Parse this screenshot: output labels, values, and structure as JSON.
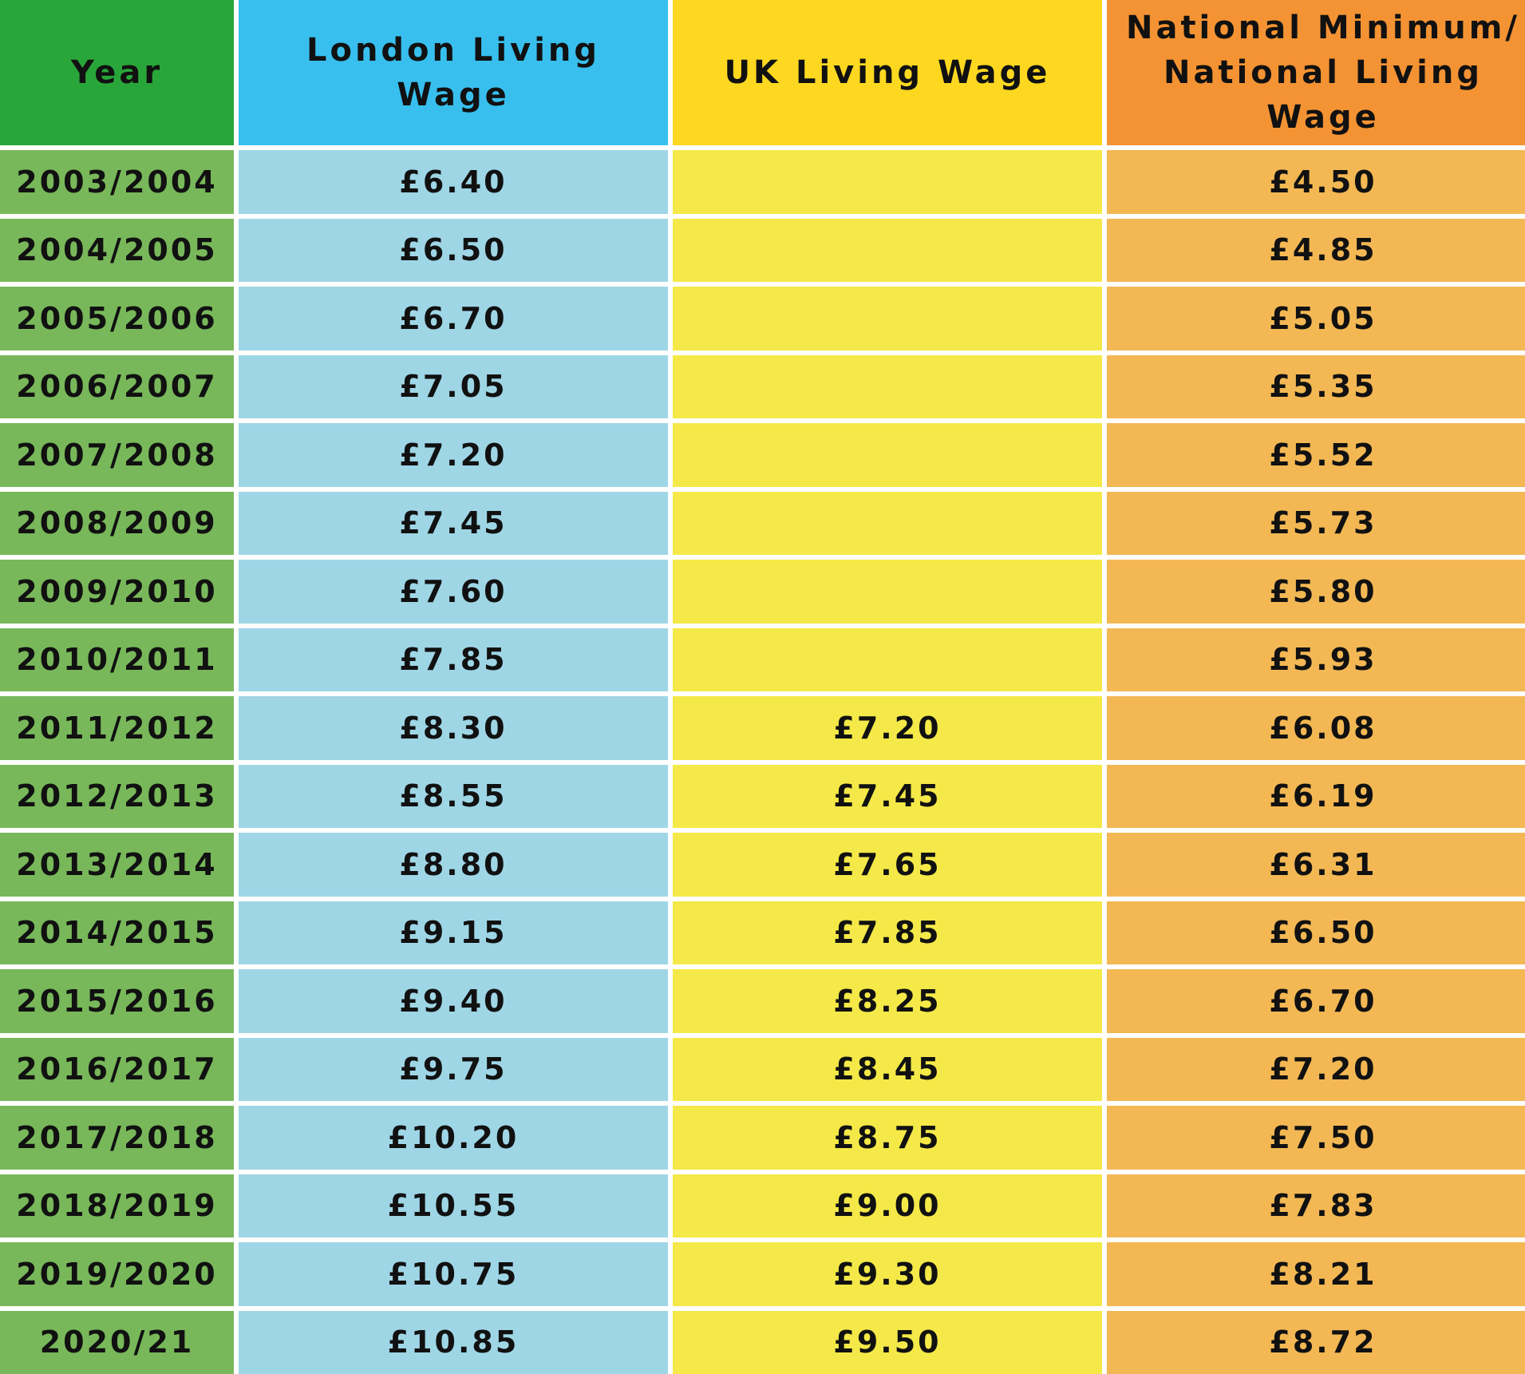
{
  "table": {
    "headers": {
      "year": "Year",
      "london_living_wage": "London Living Wage",
      "uk_living_wage": "UK Living Wage",
      "national_minimum_line1": "National Minimum/",
      "national_minimum_line2": "National Living Wage"
    },
    "colors": {
      "year_header": "#29a63a",
      "london_header": "#38bfee",
      "uk_header": "#fed820",
      "national_header": "#f49333",
      "year_cell": "#78b85a",
      "london_cell": "#9fd6e6",
      "uk_cell": "#f4e948",
      "national_cell": "#f3b854"
    },
    "rows": [
      {
        "year": "2003/2004",
        "london": "£6.40",
        "uk": "",
        "national": "£4.50"
      },
      {
        "year": "2004/2005",
        "london": "£6.50",
        "uk": "",
        "national": "£4.85"
      },
      {
        "year": "2005/2006",
        "london": "£6.70",
        "uk": "",
        "national": "£5.05"
      },
      {
        "year": "2006/2007",
        "london": "£7.05",
        "uk": "",
        "national": "£5.35"
      },
      {
        "year": "2007/2008",
        "london": "£7.20",
        "uk": "",
        "national": "£5.52"
      },
      {
        "year": "2008/2009",
        "london": "£7.45",
        "uk": "",
        "national": "£5.73"
      },
      {
        "year": "2009/2010",
        "london": "£7.60",
        "uk": "",
        "national": "£5.80"
      },
      {
        "year": "2010/2011",
        "london": "£7.85",
        "uk": "",
        "national": "£5.93"
      },
      {
        "year": "2011/2012",
        "london": "£8.30",
        "uk": "£7.20",
        "national": "£6.08"
      },
      {
        "year": "2012/2013",
        "london": "£8.55",
        "uk": "£7.45",
        "national": "£6.19"
      },
      {
        "year": "2013/2014",
        "london": "£8.80",
        "uk": "£7.65",
        "national": "£6.31"
      },
      {
        "year": "2014/2015",
        "london": "£9.15",
        "uk": "£7.85",
        "national": "£6.50"
      },
      {
        "year": "2015/2016",
        "london": "£9.40",
        "uk": "£8.25",
        "national": "£6.70"
      },
      {
        "year": "2016/2017",
        "london": "£9.75",
        "uk": "£8.45",
        "national": "£7.20"
      },
      {
        "year": "2017/2018",
        "london": "£10.20",
        "uk": "£8.75",
        "national": "£7.50"
      },
      {
        "year": "2018/2019",
        "london": "£10.55",
        "uk": "£9.00",
        "national": "£7.83"
      },
      {
        "year": "2019/2020",
        "london": "£10.75",
        "uk": "£9.30",
        "national": "£8.21"
      },
      {
        "year": "2020/21",
        "london": "£10.85",
        "uk": "£9.50",
        "national": "£8.72"
      }
    ]
  }
}
